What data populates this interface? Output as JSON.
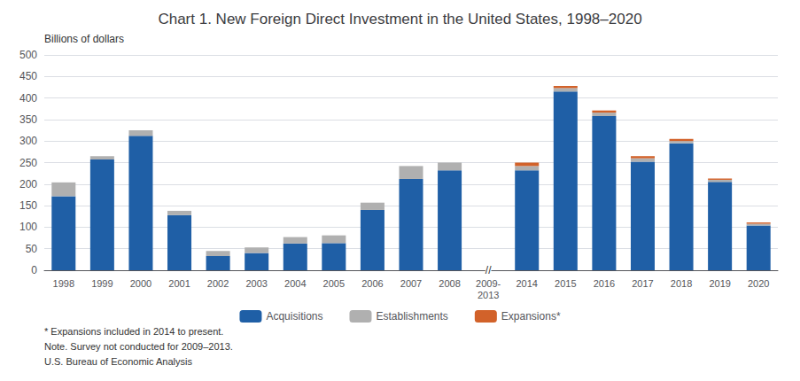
{
  "chart_data": {
    "type": "bar",
    "stacked": true,
    "title": "Chart 1. New Foreign Direct Investment in the United States, 1998–2020",
    "ylabel": "Billions of dollars",
    "categories": [
      "1998",
      "1999",
      "2000",
      "2001",
      "2002",
      "2003",
      "2004",
      "2005",
      "2006",
      "2007",
      "2008",
      "2009-\n2013",
      "2014",
      "2015",
      "2016",
      "2017",
      "2018",
      "2019",
      "2020"
    ],
    "series": [
      {
        "name": "Acquisitions",
        "color": "#1f5fa6",
        "values": [
          172,
          257,
          312,
          128,
          33,
          40,
          62,
          63,
          140,
          212,
          232,
          0,
          232,
          415,
          358,
          252,
          295,
          205,
          104
        ]
      },
      {
        "name": "Establishments",
        "color": "#b0b0b0",
        "values": [
          32,
          8,
          13,
          10,
          12,
          13,
          15,
          18,
          17,
          30,
          18,
          0,
          10,
          8,
          8,
          8,
          5,
          5,
          4
        ]
      },
      {
        "name": "Expansions*",
        "color": "#d2622a",
        "values": [
          0,
          0,
          0,
          0,
          0,
          0,
          0,
          0,
          0,
          0,
          0,
          0,
          8,
          5,
          5,
          5,
          5,
          3,
          3
        ]
      }
    ],
    "ylim": [
      0,
      500
    ],
    "yticks": [
      0,
      50,
      100,
      150,
      200,
      250,
      300,
      350,
      400,
      450,
      500
    ],
    "grid": true,
    "legend": "bottom",
    "annotations": [
      {
        "text": "//",
        "x": "2009-\n2013"
      },
      {
        "text": "* Expansions included in 2014 to present."
      },
      {
        "text": "Note. Survey not conducted for 2009–2013."
      },
      {
        "text": "U.S. Bureau of Economic Analysis"
      }
    ]
  }
}
